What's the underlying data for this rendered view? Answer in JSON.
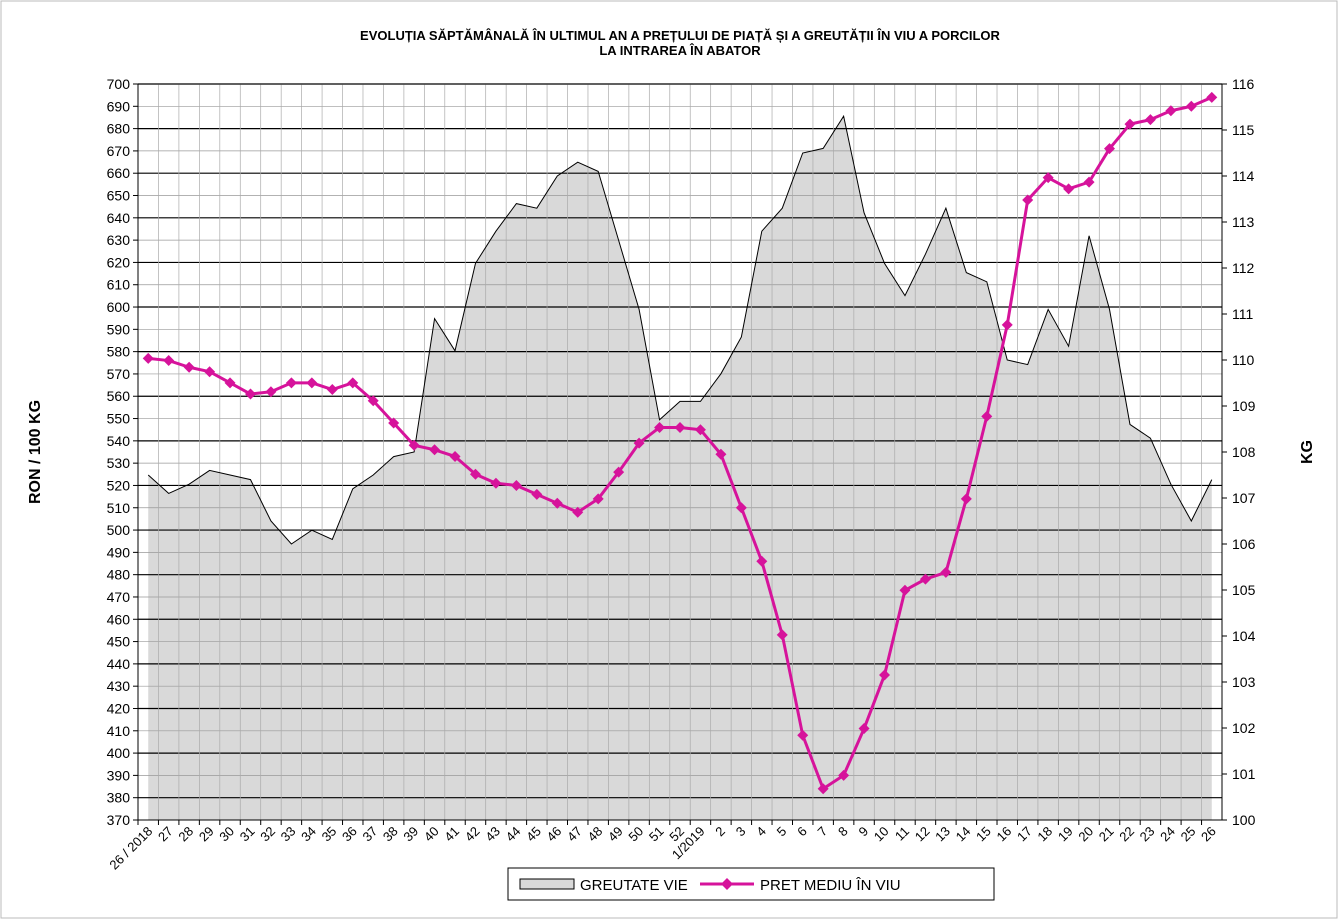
{
  "chart_data": {
    "type": "area-line",
    "title": [
      "EVOLUȚIA SĂPTĂMÂNALĂ ÎN ULTIMUL AN A PREȚULUI  DE PIAȚĂ ȘI A GREUTĂȚII  ÎN VIU A PORCILOR",
      "LA INTRAREA ÎN ABATOR"
    ],
    "y_label": "RON / 100 KG",
    "y2_label": "KG",
    "categories": [
      "26 / 2018",
      "27",
      "28",
      "29",
      "30",
      "31",
      "32",
      "33",
      "34",
      "35",
      "36",
      "37",
      "38",
      "39",
      "40",
      "41",
      "42",
      "43",
      "44",
      "45",
      "46",
      "47",
      "48",
      "49",
      "50",
      "51",
      "52",
      "1/2019",
      "2",
      "3",
      "4",
      "5",
      "6",
      "7",
      "8",
      "9",
      "10",
      "11",
      "12",
      "13",
      "14",
      "15",
      "16",
      "17",
      "18",
      "19",
      "20",
      "21",
      "22",
      "23",
      "24",
      "25",
      "26"
    ],
    "series": [
      {
        "name": "GREUTATE VIE",
        "type": "area",
        "axis": "y2",
        "color": "#d9d9d9",
        "values": [
          107.5,
          107.1,
          107.3,
          107.6,
          107.5,
          107.4,
          106.5,
          106.0,
          106.3,
          106.1,
          107.2,
          107.5,
          107.9,
          108.0,
          110.9,
          110.2,
          112.1,
          112.8,
          113.4,
          113.3,
          114.0,
          114.3,
          114.1,
          112.6,
          111.1,
          108.7,
          109.1,
          109.1,
          109.7,
          110.5,
          112.8,
          113.3,
          114.5,
          114.6,
          115.3,
          113.2,
          112.1,
          111.4,
          112.3,
          113.3,
          111.9,
          111.7,
          110.0,
          109.9,
          111.1,
          110.3,
          112.7,
          111.1,
          108.6,
          108.3,
          107.3,
          106.5,
          107.4
        ]
      },
      {
        "name": "PRET MEDIU ÎN VIU",
        "type": "line",
        "color": "#d6139b",
        "values": [
          577,
          576,
          573,
          571,
          566,
          561,
          562,
          566,
          566,
          563,
          566,
          558,
          548,
          538,
          536,
          533,
          525,
          521,
          520,
          516,
          512,
          508,
          514,
          526,
          539,
          546,
          546,
          545,
          534,
          510,
          486,
          453,
          408,
          384,
          390,
          411,
          435,
          473,
          478,
          481,
          514,
          551,
          592,
          648,
          658,
          653,
          656,
          671,
          682,
          684,
          688,
          690,
          694
        ]
      }
    ],
    "ylim": [
      370,
      700
    ],
    "yticks": [
      370,
      380,
      390,
      400,
      410,
      420,
      430,
      440,
      450,
      460,
      470,
      480,
      490,
      500,
      510,
      520,
      530,
      540,
      550,
      560,
      570,
      580,
      590,
      600,
      610,
      620,
      630,
      640,
      650,
      660,
      670,
      680,
      690,
      700
    ],
    "y2lim": [
      100,
      116
    ],
    "y2ticks": [
      100,
      101,
      102,
      103,
      104,
      105,
      106,
      107,
      108,
      109,
      110,
      111,
      112,
      113,
      114,
      115,
      116
    ],
    "grid": true,
    "legend": "bottom"
  }
}
